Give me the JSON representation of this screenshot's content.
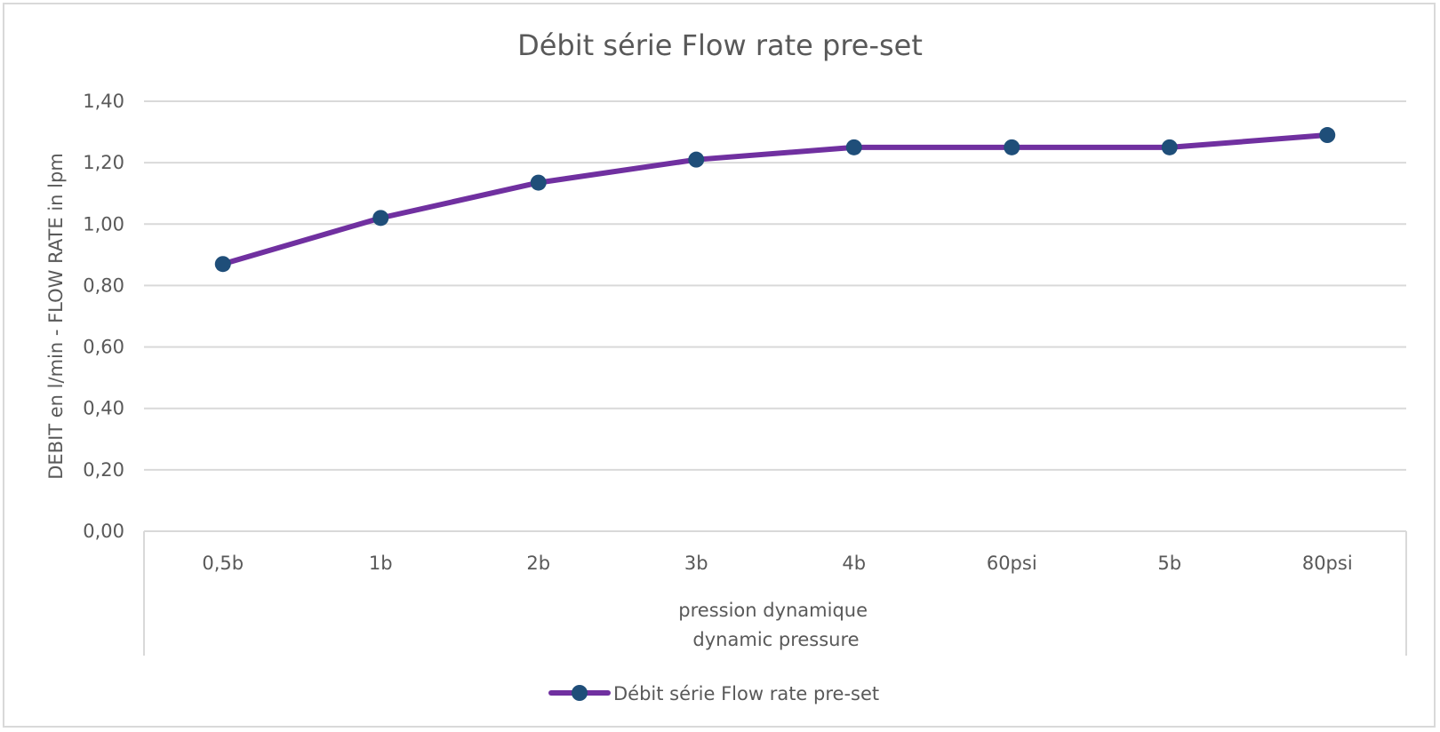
{
  "chart_data": {
    "type": "line",
    "title": "Débit série Flow rate pre-set",
    "xlabel_lines": [
      "pression dynamique",
      "dynamic pressure"
    ],
    "ylabel": "DEBIT en l/min - FLOW RATE in lpm",
    "categories": [
      "0,5b",
      "1b",
      "2b",
      "3b",
      "4b",
      "60psi",
      "5b",
      "80psi"
    ],
    "series": [
      {
        "name": "Débit série Flow rate pre-set",
        "values": [
          0.87,
          1.02,
          1.135,
          1.21,
          1.25,
          1.25,
          1.25,
          1.29
        ],
        "line_color": "#7030a0",
        "marker_color": "#1f4e79"
      }
    ],
    "ylim": [
      0,
      1.4
    ],
    "y_ticks": [
      "0,00",
      "0,20",
      "0,40",
      "0,60",
      "0,80",
      "1,00",
      "1,20",
      "1,40"
    ],
    "grid": true,
    "legend_position": "bottom"
  }
}
